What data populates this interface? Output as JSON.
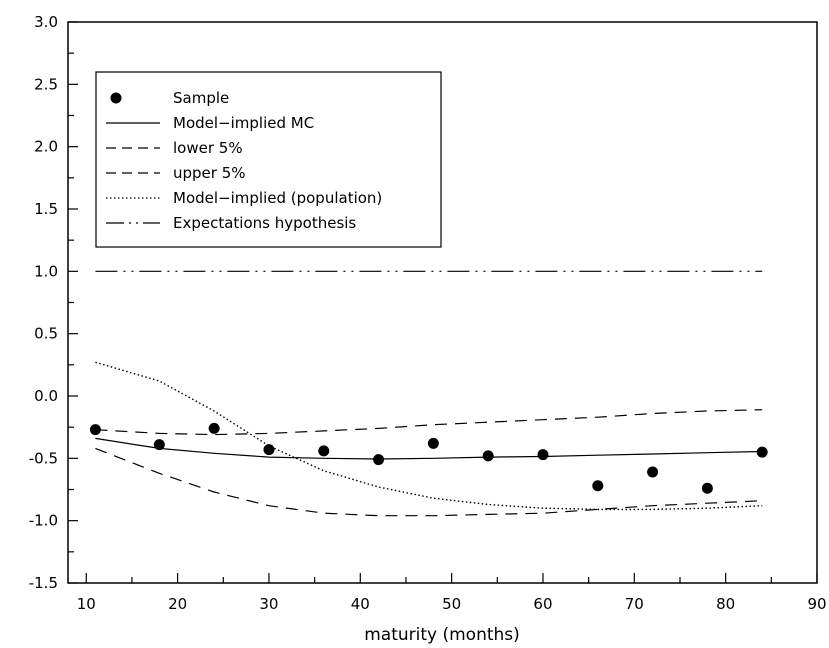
{
  "chart_data": {
    "type": "line",
    "title": "",
    "xlabel": "maturity (months)",
    "ylabel": "",
    "xlim": [
      8,
      90
    ],
    "ylim": [
      -1.5,
      3.0
    ],
    "xticks": [
      10,
      20,
      30,
      40,
      50,
      60,
      70,
      80,
      90
    ],
    "yticks": [
      -1.5,
      -1.0,
      -0.5,
      0.0,
      0.5,
      1.0,
      1.5,
      2.0,
      2.5,
      3.0
    ],
    "xtick_labels": [
      "10",
      "20",
      "30",
      "40",
      "50",
      "60",
      "70",
      "80",
      "90"
    ],
    "ytick_labels": [
      "-1.5",
      "-1.0",
      "-0.5",
      "0.0",
      "0.5",
      "1.0",
      "1.5",
      "2.0",
      "2.5",
      "3.0"
    ],
    "grid": false,
    "legend_position": "top-left",
    "series": [
      {
        "name": "Sample",
        "kind": "scatter",
        "x": [
          11,
          18,
          24,
          30,
          36,
          42,
          48,
          54,
          60,
          66,
          72,
          78,
          84
        ],
        "y": [
          -0.27,
          -0.39,
          -0.26,
          -0.43,
          -0.44,
          -0.51,
          -0.38,
          -0.48,
          -0.47,
          -0.72,
          -0.61,
          -0.74,
          -0.45
        ]
      },
      {
        "name": "Model−implied MC",
        "kind": "line",
        "dash": "solid",
        "x": [
          11,
          18,
          24,
          30,
          36,
          42,
          48,
          54,
          60,
          66,
          72,
          78,
          84
        ],
        "y": [
          -0.34,
          -0.42,
          -0.46,
          -0.49,
          -0.5,
          -0.505,
          -0.5,
          -0.49,
          -0.485,
          -0.475,
          -0.465,
          -0.455,
          -0.445
        ]
      },
      {
        "name": "lower 5%",
        "kind": "line",
        "dash": "dashed",
        "x": [
          11,
          18,
          24,
          30,
          36,
          42,
          48,
          54,
          60,
          66,
          72,
          78,
          84
        ],
        "y": [
          -0.42,
          -0.62,
          -0.77,
          -0.88,
          -0.94,
          -0.96,
          -0.96,
          -0.95,
          -0.94,
          -0.91,
          -0.88,
          -0.86,
          -0.84
        ]
      },
      {
        "name": "upper 5%",
        "kind": "line",
        "dash": "dashed",
        "x": [
          11,
          18,
          24,
          30,
          36,
          42,
          48,
          54,
          60,
          66,
          72,
          78,
          84
        ],
        "y": [
          -0.27,
          -0.3,
          -0.31,
          -0.3,
          -0.28,
          -0.26,
          -0.23,
          -0.21,
          -0.19,
          -0.17,
          -0.14,
          -0.12,
          -0.11
        ]
      },
      {
        "name": "Model−implied (population)",
        "kind": "line",
        "dash": "dotted",
        "x": [
          11,
          18,
          24,
          30,
          36,
          42,
          48,
          54,
          60,
          66,
          72,
          78,
          84
        ],
        "y": [
          0.27,
          0.12,
          -0.12,
          -0.4,
          -0.6,
          -0.73,
          -0.82,
          -0.87,
          -0.9,
          -0.91,
          -0.91,
          -0.9,
          -0.88
        ]
      },
      {
        "name": "Expectations hypothesis",
        "kind": "line",
        "dash": "dashdotdot",
        "x": [
          11,
          84
        ],
        "y": [
          1.0,
          1.0
        ]
      }
    ]
  }
}
